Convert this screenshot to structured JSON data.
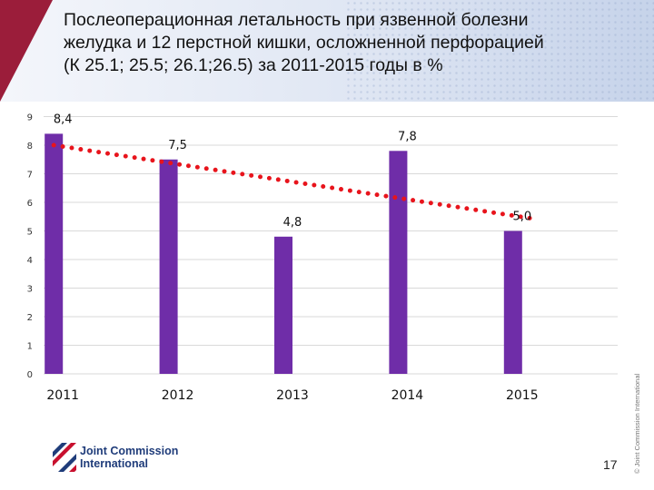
{
  "slide": {
    "title_lines": [
      "Послеоперационная летальность при язвенной болезни",
      "желудка и 12 перстной кишки, осложненной перфорацией",
      "(К 25.1; 25.5; 26.1;26.5) за 2011-2015 годы в %"
    ],
    "vertical_note": "© Joint Commission International",
    "page_number": "17",
    "logo": {
      "line1": "Joint Commission",
      "line2": "International"
    }
  },
  "chart_data": {
    "type": "bar",
    "categories": [
      "2011",
      "2012",
      "2013",
      "2014",
      "2015"
    ],
    "values": [
      8.4,
      7.5,
      4.8,
      7.8,
      5.0
    ],
    "data_labels": [
      "8,4",
      "7,5",
      "4,8",
      "7,8",
      "5,0"
    ],
    "ylim": [
      0,
      9
    ],
    "yticks": [
      "0",
      "1",
      "2",
      "3",
      "4",
      "5",
      "6",
      "7",
      "8",
      "9"
    ],
    "trendline": {
      "style": "dotted",
      "start": 8.0,
      "end": 5.4
    },
    "colors": {
      "bar": "#6f2da8",
      "trendline": "#e8141c",
      "grid": "#d9d9d9"
    },
    "grid": true,
    "legend": "none"
  }
}
